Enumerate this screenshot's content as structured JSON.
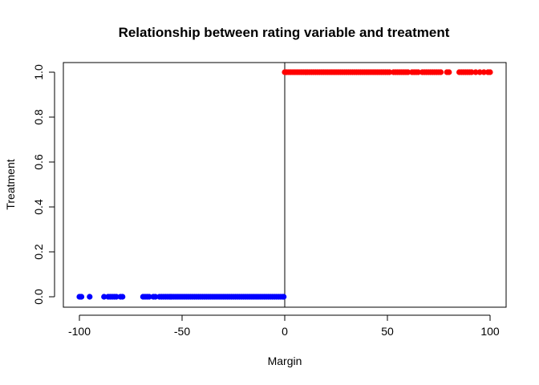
{
  "chart_data": {
    "type": "scatter",
    "title": "Relationship between rating variable and treatment",
    "xlabel": "Margin",
    "ylabel": "Treatment",
    "xlim": [
      -100,
      100
    ],
    "ylim": [
      0,
      1
    ],
    "xticks": [
      -100,
      -50,
      0,
      50,
      100
    ],
    "yticks": [
      0.0,
      0.2,
      0.4,
      0.6,
      0.8,
      1.0
    ],
    "ytick_labels": [
      "0.0",
      "0.2",
      "0.4",
      "0.6",
      "0.8",
      "1.0"
    ],
    "vline_x": 0,
    "grid": false,
    "legend": "none",
    "series": [
      {
        "color": "#0000ff",
        "y": 0,
        "x": [
          -100,
          -99.5,
          -99,
          -95,
          -88,
          -86,
          -85,
          -84,
          -83,
          -82,
          -80,
          -79,
          -69,
          -68,
          -67,
          -66,
          -64,
          -63,
          -61,
          -60,
          -59,
          -58,
          -57,
          -56,
          -55.5,
          -55,
          -54,
          -53,
          -52,
          -51,
          -50,
          -49,
          -48,
          -47,
          -46,
          -45,
          -44,
          -43,
          -42,
          -41,
          -40,
          -39,
          -38,
          -37,
          -36,
          -35,
          -34,
          -33,
          -32,
          -31,
          -30,
          -29,
          -28,
          -27,
          -26,
          -25,
          -24,
          -23,
          -22,
          -21,
          -20,
          -19,
          -18,
          -17,
          -16,
          -15,
          -14,
          -13,
          -12,
          -11,
          -10,
          -9,
          -8,
          -7,
          -6,
          -5,
          -4,
          -3,
          -2,
          -1,
          -0.5
        ]
      },
      {
        "color": "#ff0000",
        "y": 1,
        "x": [
          0,
          0.5,
          1,
          2,
          3,
          4,
          5,
          6,
          7,
          8,
          9,
          10,
          11,
          12,
          13,
          14,
          15,
          16,
          17,
          18,
          19,
          20,
          21,
          22,
          23,
          24,
          25,
          26,
          27,
          28,
          29,
          30,
          31,
          32,
          33,
          34,
          35,
          36,
          37,
          38,
          39,
          40,
          41,
          42,
          43,
          44,
          45,
          46,
          47,
          48,
          49,
          50,
          51,
          53,
          54,
          55,
          56,
          57,
          58,
          59,
          60,
          62,
          63,
          64,
          65,
          67,
          68,
          69,
          70,
          71,
          72,
          73,
          74,
          75,
          76,
          79,
          80,
          85,
          86,
          87,
          88,
          89,
          90,
          91,
          93,
          95,
          97,
          99,
          100
        ]
      }
    ]
  }
}
